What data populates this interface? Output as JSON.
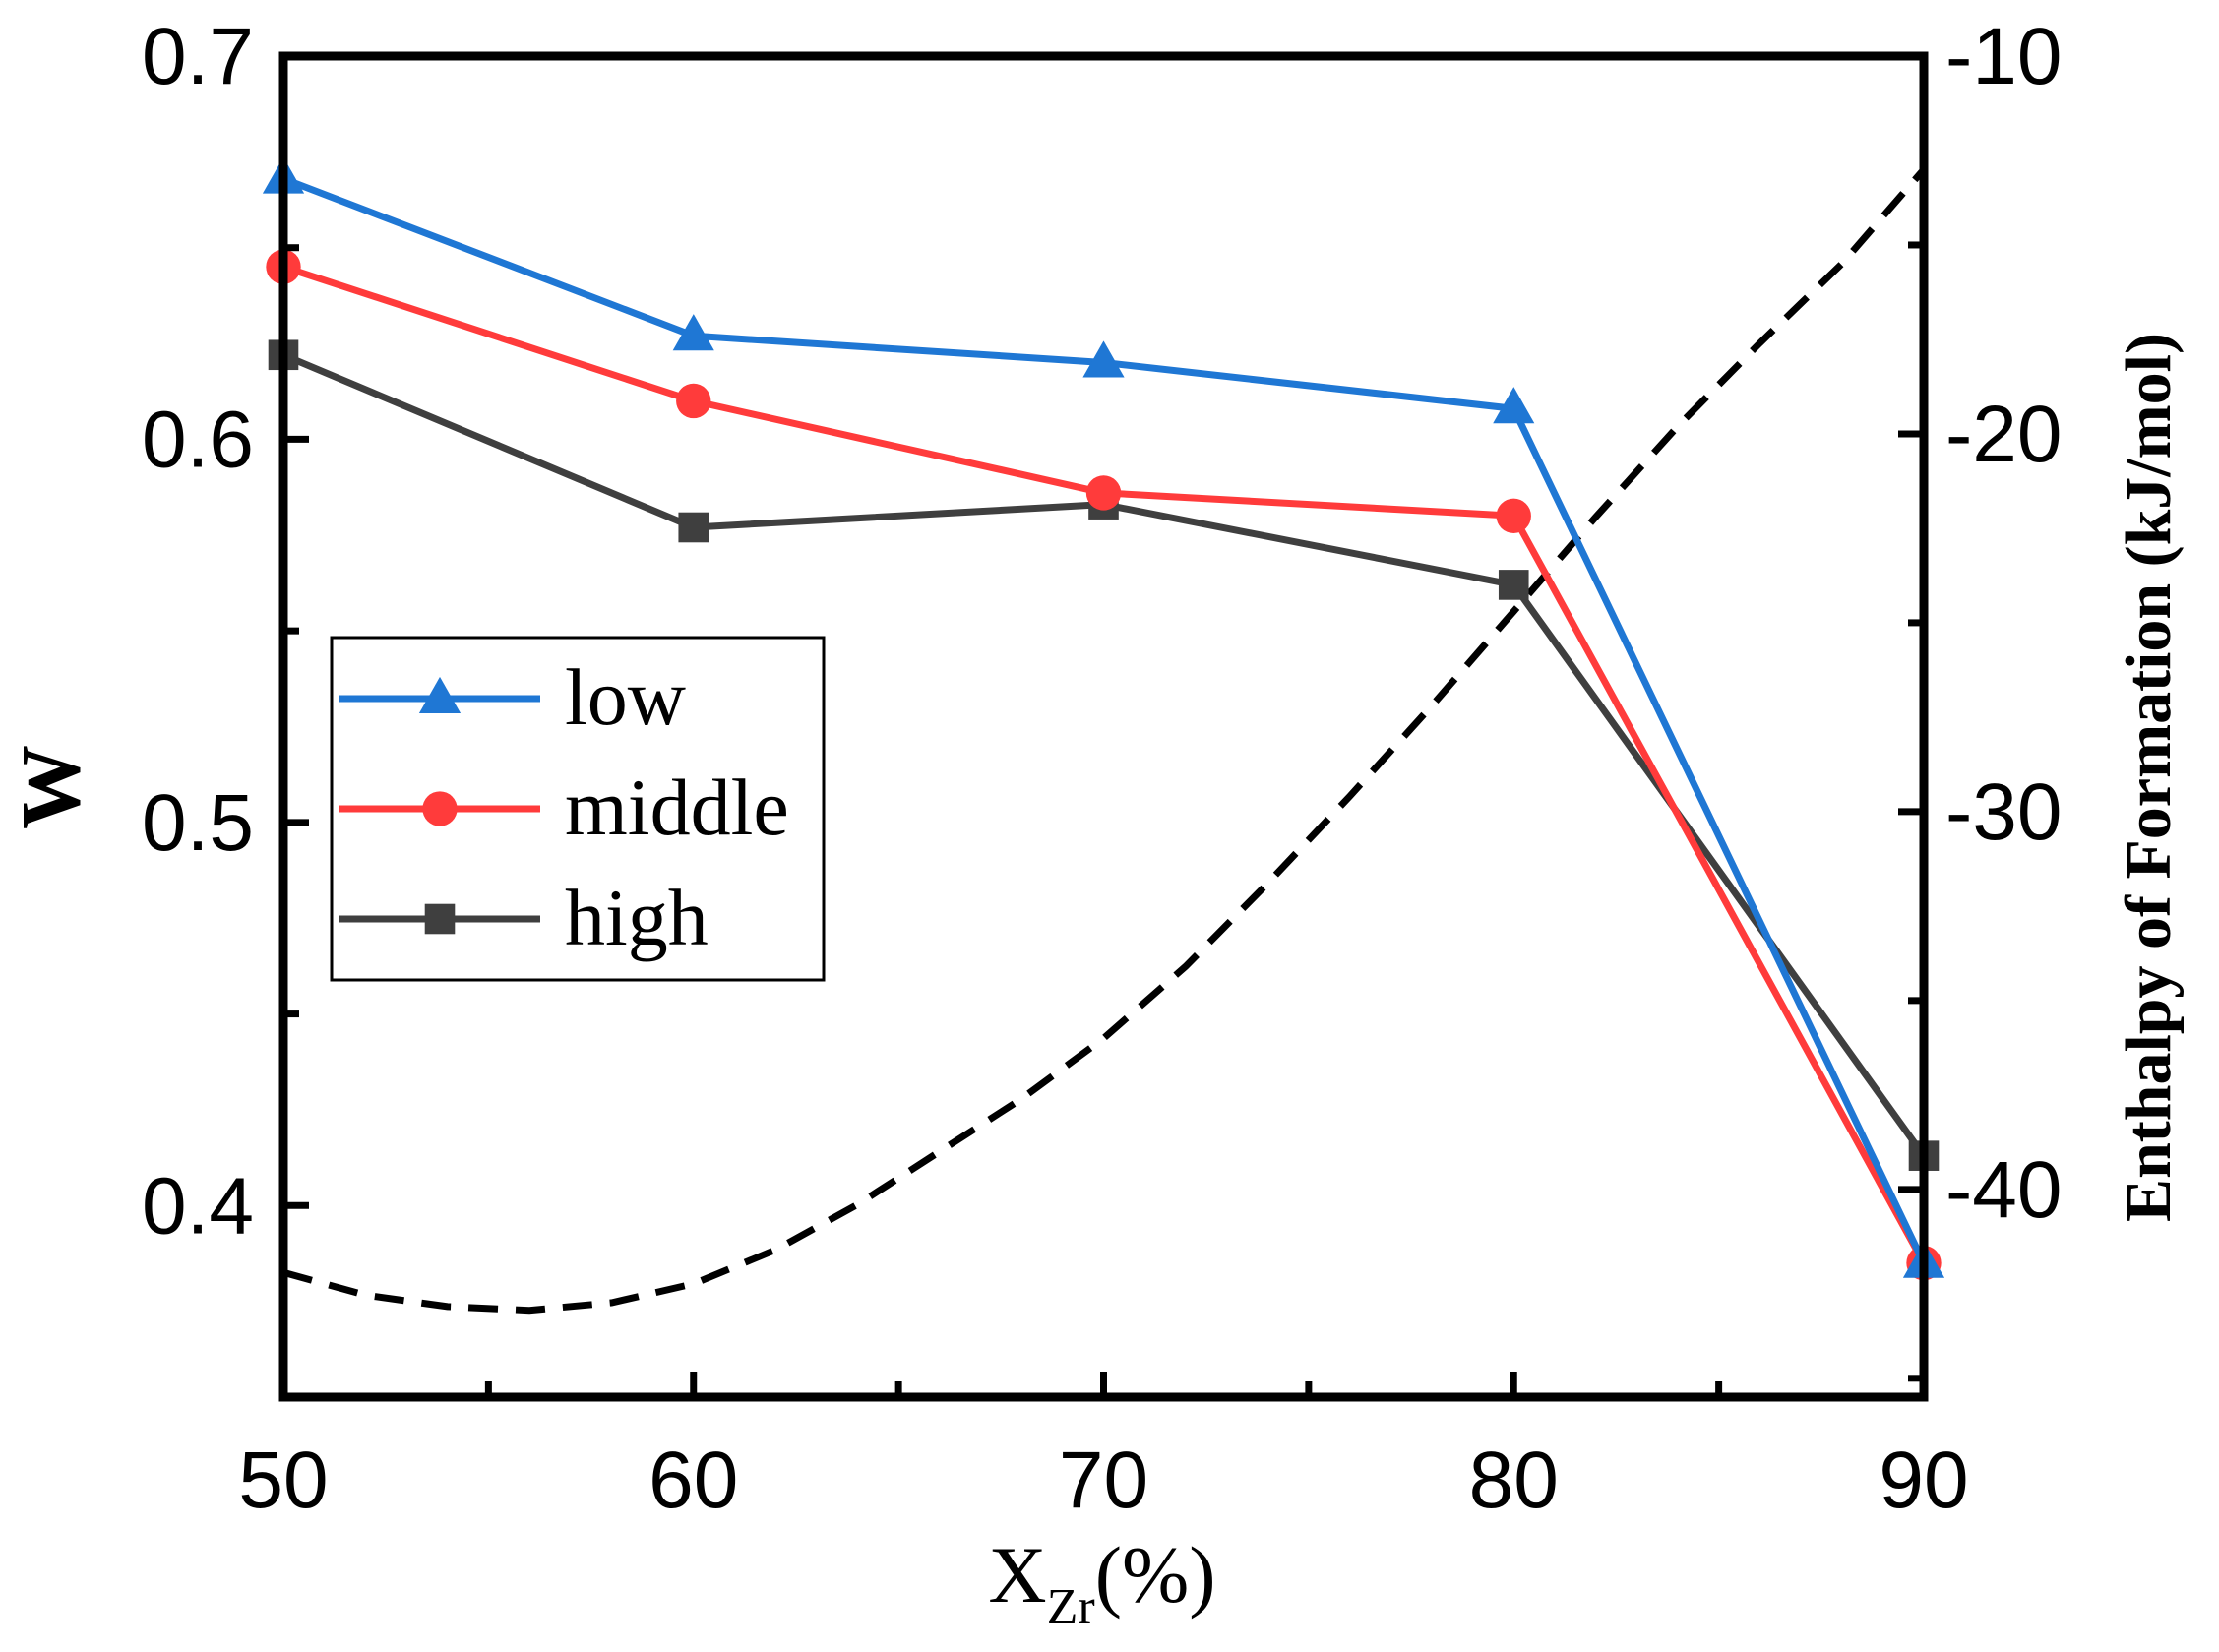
{
  "chart_data": {
    "type": "line",
    "xlabel_main": "X",
    "xlabel_sub": "Zr",
    "xlabel_unit": "(%)",
    "ylabel": "W",
    "y2label": "Enthalpy of Formation (kJ/mol)",
    "xlim": [
      50,
      90
    ],
    "ylim": [
      0.35,
      0.7
    ],
    "y2lim": [
      -45.5,
      -10
    ],
    "x_ticks": [
      "50",
      "60",
      "70",
      "80",
      "90"
    ],
    "y_ticks": [
      "0.4",
      "0.5",
      "0.6",
      "0.7"
    ],
    "y2_ticks": [
      "-40",
      "-30",
      "-20",
      "-10"
    ],
    "x": [
      50,
      60,
      70,
      80,
      90
    ],
    "series": [
      {
        "name": "low",
        "marker": "triangle",
        "color": "#1f77d4",
        "values": [
          0.668,
          0.627,
          0.62,
          0.608,
          0.385
        ]
      },
      {
        "name": "middle",
        "marker": "circle",
        "color": "#ff3b3b",
        "values": [
          0.645,
          0.61,
          0.586,
          0.58,
          0.385
        ]
      },
      {
        "name": "high",
        "marker": "square",
        "color": "#3f3f3f",
        "values": [
          0.622,
          0.577,
          0.583,
          0.562,
          0.413
        ]
      }
    ],
    "enthalpy_curve": {
      "axis": "right",
      "color": "#000000",
      "style": "dashed",
      "x": [
        50,
        52,
        54,
        56,
        58,
        60,
        62,
        64,
        66,
        68,
        70,
        72,
        74,
        76,
        78,
        80,
        82,
        84,
        86,
        88,
        90
      ],
      "values": [
        -42.2,
        -42.8,
        -43.1,
        -43.2,
        -43.0,
        -42.5,
        -41.6,
        -40.4,
        -39.0,
        -37.6,
        -36.0,
        -34.1,
        -31.9,
        -29.6,
        -27.2,
        -24.7,
        -22.2,
        -19.8,
        -17.6,
        -15.5,
        -13.0
      ]
    },
    "legend_position": "middle-left",
    "grid": false
  }
}
